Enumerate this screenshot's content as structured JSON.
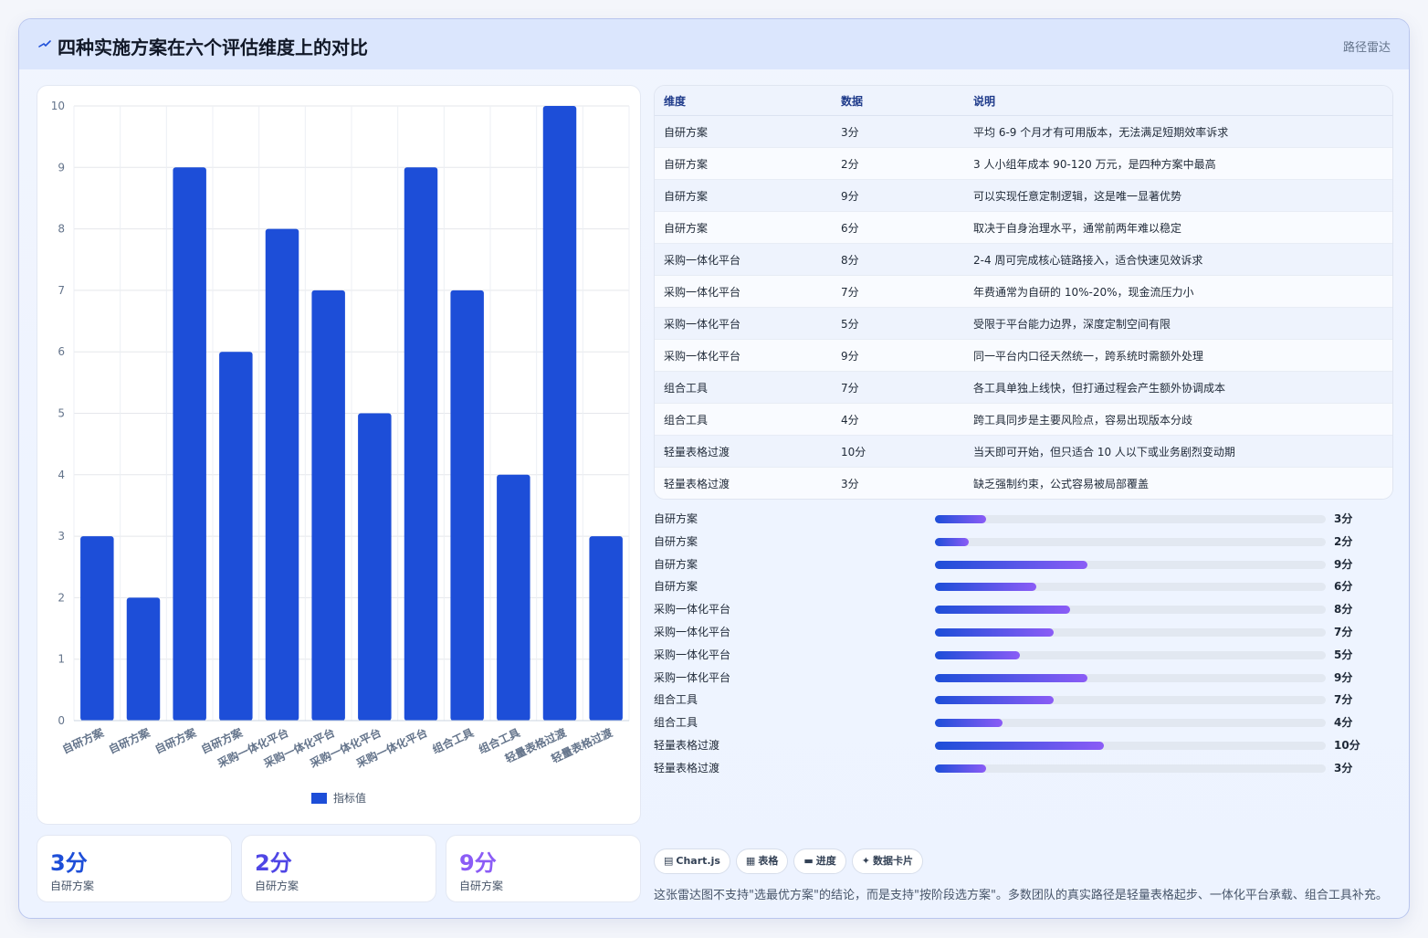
{
  "header": {
    "title": "四种实施方案在六个评估维度上的对比",
    "tag": "路径雷达"
  },
  "chart_data": {
    "type": "bar",
    "categories": [
      "自研方案",
      "自研方案",
      "自研方案",
      "自研方案",
      "采购一体化平台",
      "采购一体化平台",
      "采购一体化平台",
      "采购一体化平台",
      "组合工具",
      "组合工具",
      "轻量表格过渡",
      "轻量表格过渡"
    ],
    "series": [
      {
        "name": "指标值",
        "values": [
          3,
          2,
          9,
          6,
          8,
          7,
          5,
          9,
          7,
          4,
          10,
          3
        ]
      }
    ],
    "ylim": [
      0,
      10
    ],
    "yticks": [
      0,
      1,
      2,
      3,
      4,
      5,
      6,
      7,
      8,
      9,
      10
    ],
    "legend_position": "bottom",
    "grid": true,
    "bar_color": "#1d4ed8"
  },
  "table": {
    "headers": [
      "维度",
      "数据",
      "说明"
    ],
    "rows": [
      [
        "自研方案",
        "3分",
        "平均 6-9 个月才有可用版本，无法满足短期效率诉求"
      ],
      [
        "自研方案",
        "2分",
        "3 人小组年成本 90-120 万元，是四种方案中最高"
      ],
      [
        "自研方案",
        "9分",
        "可以实现任意定制逻辑，这是唯一显著优势"
      ],
      [
        "自研方案",
        "6分",
        "取决于自身治理水平，通常前两年难以稳定"
      ],
      [
        "采购一体化平台",
        "8分",
        "2-4 周可完成核心链路接入，适合快速见效诉求"
      ],
      [
        "采购一体化平台",
        "7分",
        "年费通常为自研的 10%-20%，现金流压力小"
      ],
      [
        "采购一体化平台",
        "5分",
        "受限于平台能力边界，深度定制空间有限"
      ],
      [
        "采购一体化平台",
        "9分",
        "同一平台内口径天然统一，跨系统时需额外处理"
      ],
      [
        "组合工具",
        "7分",
        "各工具单独上线快，但打通过程会产生额外协调成本"
      ],
      [
        "组合工具",
        "4分",
        "跨工具同步是主要风险点，容易出现版本分歧"
      ],
      [
        "轻量表格过渡",
        "10分",
        "当天即可开始，但只适合 10 人以下或业务剧烈变动期"
      ],
      [
        "轻量表格过渡",
        "3分",
        "缺乏强制约束，公式容易被局部覆盖"
      ]
    ]
  },
  "progress": {
    "max": 10,
    "items": [
      {
        "label": "自研方案",
        "value": 3,
        "text": "3分"
      },
      {
        "label": "自研方案",
        "value": 2,
        "text": "2分"
      },
      {
        "label": "自研方案",
        "value": 9,
        "text": "9分"
      },
      {
        "label": "自研方案",
        "value": 6,
        "text": "6分"
      },
      {
        "label": "采购一体化平台",
        "value": 8,
        "text": "8分"
      },
      {
        "label": "采购一体化平台",
        "value": 7,
        "text": "7分"
      },
      {
        "label": "采购一体化平台",
        "value": 5,
        "text": "5分"
      },
      {
        "label": "采购一体化平台",
        "value": 9,
        "text": "9分"
      },
      {
        "label": "组合工具",
        "value": 7,
        "text": "7分"
      },
      {
        "label": "组合工具",
        "value": 4,
        "text": "4分"
      },
      {
        "label": "轻量表格过渡",
        "value": 10,
        "text": "10分"
      },
      {
        "label": "轻量表格过渡",
        "value": 3,
        "text": "3分"
      }
    ]
  },
  "stats": [
    {
      "value": "3分",
      "label": "自研方案",
      "color": "#1d4ed8"
    },
    {
      "value": "2分",
      "label": "自研方案",
      "color": "#4f46e5"
    },
    {
      "value": "9分",
      "label": "自研方案",
      "color": "#8b5cf6"
    }
  ],
  "chips": [
    {
      "icon": "chart-icon",
      "glyph": "▤",
      "label": "Chart.js"
    },
    {
      "icon": "table-icon",
      "glyph": "▦",
      "label": "表格"
    },
    {
      "icon": "progress-icon",
      "glyph": "▬",
      "label": "进度"
    },
    {
      "icon": "sparkle-icon",
      "glyph": "✦",
      "label": "数据卡片"
    }
  ],
  "note": "这张雷达图不支持\"选最优方案\"的结论，而是支持\"按阶段选方案\"。多数团队的真实路径是轻量表格起步、一体化平台承载、组合工具补充。"
}
